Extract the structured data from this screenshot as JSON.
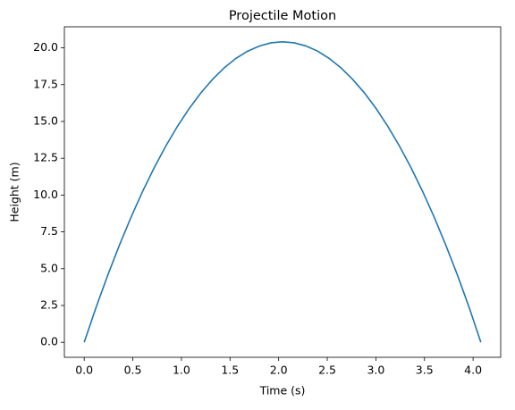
{
  "chart_data": {
    "type": "line",
    "title": "Projectile Motion",
    "x_label": "Time (s)",
    "y_label": "Height (m)",
    "x": [
      0,
      0.12,
      0.24,
      0.36,
      0.48,
      0.6,
      0.72,
      0.84,
      0.96,
      1.08,
      1.2,
      1.32,
      1.44,
      1.56,
      1.68,
      1.8,
      1.92,
      2.04,
      2.16,
      2.28,
      2.4,
      2.52,
      2.64,
      2.76,
      2.88,
      3.0,
      3.12,
      3.24,
      3.36,
      3.48,
      3.6,
      3.72,
      3.84,
      3.96,
      4.08
    ],
    "series": [
      {
        "color": "#1f77b4",
        "values": [
          0,
          2.33,
          4.52,
          6.56,
          8.47,
          10.24,
          11.86,
          13.34,
          14.68,
          15.88,
          16.94,
          17.86,
          18.64,
          19.28,
          19.77,
          20.12,
          20.34,
          20.41,
          20.34,
          20.13,
          19.78,
          19.28,
          18.65,
          17.87,
          16.96,
          15.9,
          14.7,
          13.36,
          11.88,
          10.26,
          8.5,
          6.59,
          4.55,
          2.36,
          0
        ]
      }
    ],
    "xlim": [
      -0.204,
      4.284
    ],
    "ylim": [
      -1.02,
      21.43
    ],
    "xticks": [
      {
        "value": 0,
        "label": "0.0"
      },
      {
        "value": 0.5,
        "label": "0.5"
      },
      {
        "value": 1,
        "label": "1.0"
      },
      {
        "value": 1.5,
        "label": "1.5"
      },
      {
        "value": 2,
        "label": "2.0"
      },
      {
        "value": 2.5,
        "label": "2.5"
      },
      {
        "value": 3,
        "label": "3.0"
      },
      {
        "value": 3.5,
        "label": "3.5"
      },
      {
        "value": 4,
        "label": "4.0"
      }
    ],
    "yticks": [
      {
        "value": 0,
        "label": "0.0"
      },
      {
        "value": 2.5,
        "label": "2.5"
      },
      {
        "value": 5,
        "label": "5.0"
      },
      {
        "value": 7.5,
        "label": "7.5"
      },
      {
        "value": 10,
        "label": "10.0"
      },
      {
        "value": 12.5,
        "label": "12.5"
      },
      {
        "value": 15,
        "label": "15.0"
      },
      {
        "value": 17.5,
        "label": "17.5"
      },
      {
        "value": 20,
        "label": "20.0"
      }
    ],
    "grid": false
  }
}
